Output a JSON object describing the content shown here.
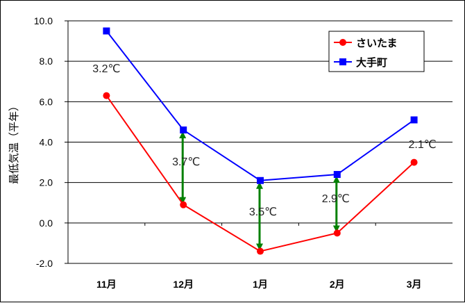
{
  "chart_data": {
    "type": "line",
    "categories": [
      "11月",
      "12月",
      "1月",
      "2月",
      "3月"
    ],
    "series": [
      {
        "name": "さいたま",
        "color": "#ff0000",
        "marker": "circle",
        "values": [
          6.3,
          0.9,
          -1.4,
          -0.5,
          3.0
        ]
      },
      {
        "name": "大手町",
        "color": "#0000ff",
        "marker": "square",
        "values": [
          9.5,
          4.6,
          2.1,
          2.4,
          5.1
        ]
      }
    ],
    "ylabel": "最低気温（平年）",
    "ylim": [
      -2.0,
      10.0
    ],
    "yticks": [
      "10.0",
      "8.0",
      "6.0",
      "4.0",
      "2.0",
      "0.0",
      "-2.0"
    ],
    "grid": true,
    "legend_position": "top-right",
    "annotations": [
      {
        "label": "3.2℃",
        "category_index": 0,
        "arrow": false
      },
      {
        "label": "3.7℃",
        "category_index": 1,
        "arrow": true
      },
      {
        "label": "3.5℃",
        "category_index": 2,
        "arrow": true
      },
      {
        "label": "2.9℃",
        "category_index": 3,
        "arrow": true
      },
      {
        "label": "2.1℃",
        "category_index": 4,
        "arrow": false
      }
    ],
    "arrow_color": "#008000"
  }
}
